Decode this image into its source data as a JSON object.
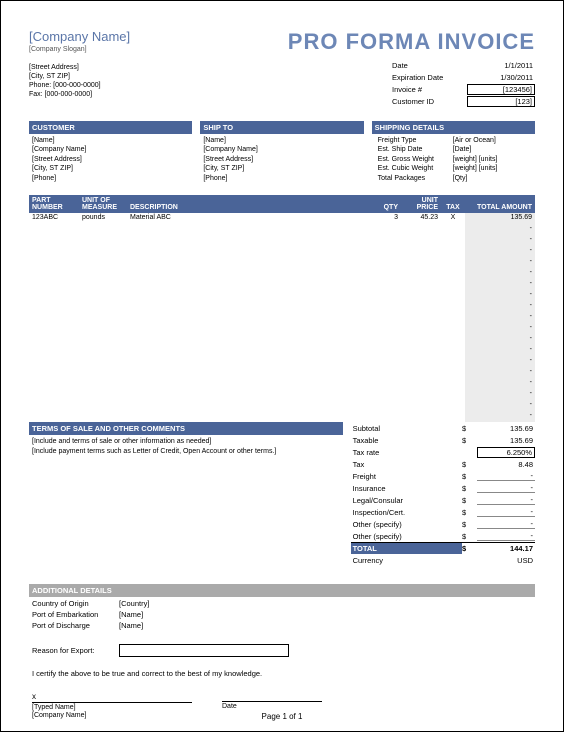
{
  "company": {
    "name": "[Company Name]",
    "slogan": "[Company Slogan]",
    "street": "[Street Address]",
    "city": "[City, ST  ZIP]",
    "phone": "Phone: [000-000-0000]",
    "fax": "Fax: [000-000-0000]"
  },
  "title": "PRO FORMA INVOICE",
  "meta": {
    "date_label": "Date",
    "date": "1/1/2011",
    "exp_label": "Expiration Date",
    "exp": "1/30/2011",
    "invno_label": "Invoice #",
    "invno": "[123456]",
    "custid_label": "Customer ID",
    "custid": "[123]"
  },
  "customer": {
    "header": "CUSTOMER",
    "name": "[Name]",
    "company": "[Company Name]",
    "street": "[Street Address]",
    "city": "[City, ST  ZIP]",
    "phone": "[Phone]"
  },
  "shipto": {
    "header": "SHIP TO",
    "name": "[Name]",
    "company": "[Company Name]",
    "street": "[Street Address]",
    "city": "[City, ST  ZIP]",
    "phone": "[Phone]"
  },
  "shipping": {
    "header": "SHIPPING DETAILS",
    "rows": [
      {
        "label": "Freight Type",
        "value": "[Air or Ocean]"
      },
      {
        "label": "Est. Ship Date",
        "value": "[Date]"
      },
      {
        "label": "Est. Gross Weight",
        "value": "[weight] [units]"
      },
      {
        "label": "Est. Cubic Weight",
        "value": "[weight] [units]"
      },
      {
        "label": "Total Packages",
        "value": "[Qty]"
      }
    ]
  },
  "items": {
    "headers": {
      "part": "PART NUMBER",
      "uom": "UNIT OF MEASURE",
      "desc": "DESCRIPTION",
      "qty": "QTY",
      "price": "UNIT PRICE",
      "tax": "TAX",
      "total": "TOTAL AMOUNT"
    },
    "rows": [
      {
        "part": "123ABC",
        "uom": "pounds",
        "desc": "Material ABC",
        "qty": "3",
        "price": "45.23",
        "tax": "X",
        "total": "135.69"
      }
    ],
    "blank_rows": 18
  },
  "terms": {
    "header": "TERMS OF SALE AND OTHER COMMENTS",
    "line1": "[Include and terms of sale or other information as needed]",
    "line2": "[Include payment terms such as Letter of Credit, Open Account or other terms.]"
  },
  "totals": {
    "rows": [
      {
        "label": "Subtotal",
        "sym": "$",
        "value": "135.69",
        "ul": false
      },
      {
        "label": "Taxable",
        "sym": "$",
        "value": "135.69",
        "ul": false
      },
      {
        "label": "Tax rate",
        "sym": "",
        "value": "6.250%",
        "boxed": true
      },
      {
        "label": "Tax",
        "sym": "$",
        "value": "8.48",
        "ul": false
      },
      {
        "label": "Freight",
        "sym": "$",
        "value": "-",
        "ul": true
      },
      {
        "label": "Insurance",
        "sym": "$",
        "value": "-",
        "ul": true
      },
      {
        "label": "Legal/Consular",
        "sym": "$",
        "value": "-",
        "ul": true
      },
      {
        "label": "Inspection/Cert.",
        "sym": "$",
        "value": "-",
        "ul": true
      },
      {
        "label": "Other (specify)",
        "sym": "$",
        "value": "-",
        "ul": true
      },
      {
        "label": "Other (specify)",
        "sym": "$",
        "value": "-",
        "ul": true
      }
    ],
    "grand": {
      "label": "TOTAL",
      "sym": "$",
      "value": "144.17"
    },
    "currency": {
      "label": "Currency",
      "value": "USD"
    }
  },
  "additional": {
    "header": "ADDITIONAL DETAILS",
    "rows": [
      {
        "label": "Country of Origin",
        "value": "[Country]"
      },
      {
        "label": "Port of Embarkation",
        "value": "[Name]"
      },
      {
        "label": "Port of Discharge",
        "value": "[Name]"
      }
    ],
    "reason_label": "Reason for Export:",
    "certify": "I certify the above to be true and correct to the best of my knowledge."
  },
  "signature": {
    "x": "x",
    "typed": "[Typed Name]",
    "company": "[Company Name]",
    "date": "Date"
  },
  "page_num": "Page 1 of 1",
  "colors": {
    "header_blue": "#4a6498",
    "title_blue": "#6d87b6",
    "grey_header": "#aaaaaa",
    "total_col_bg": "#ececec"
  }
}
